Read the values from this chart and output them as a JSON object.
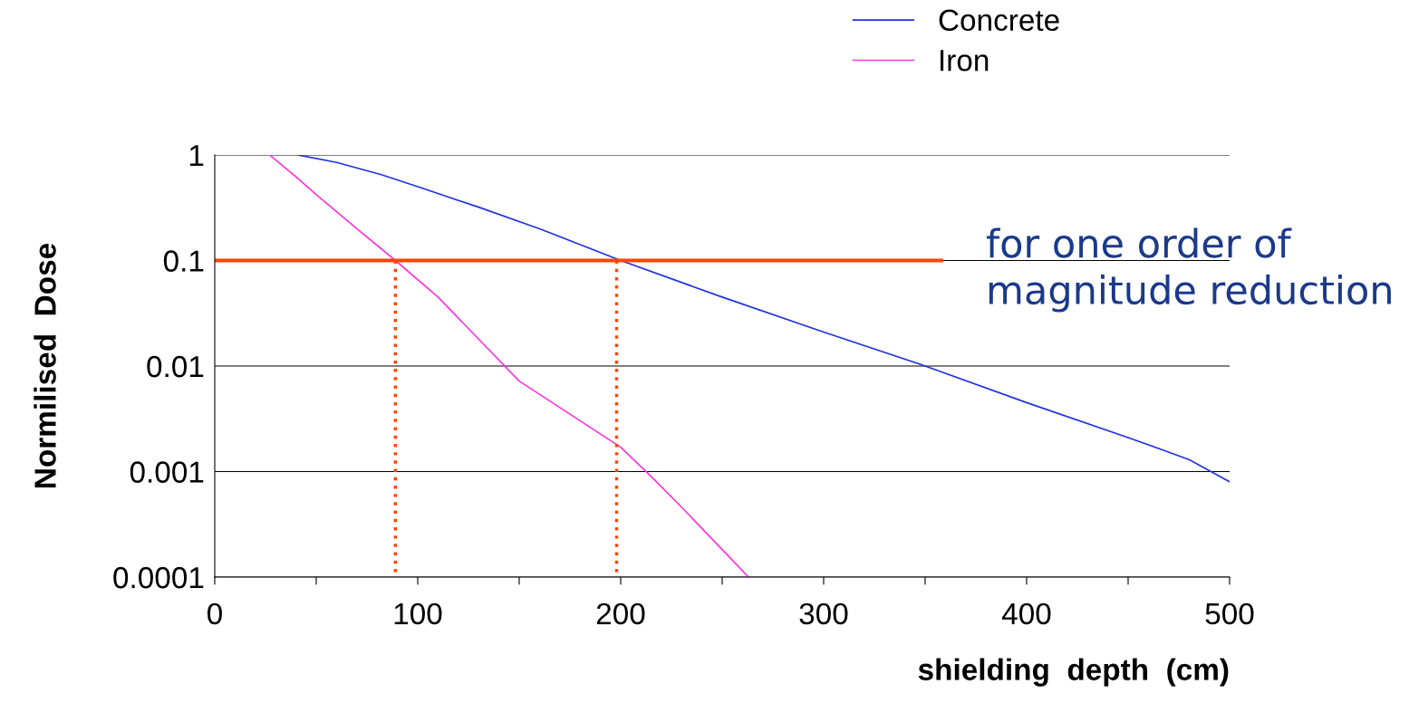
{
  "chart_data": {
    "type": "line",
    "xlabel": "shielding  depth  (cm)",
    "ylabel": "Normilised  Dose",
    "log": "y",
    "xlim": [
      0,
      500
    ],
    "ylim": [
      0.0001,
      1
    ],
    "xticks": [
      0,
      {
        "value": 50,
        "label": null
      },
      100,
      {
        "value": 150,
        "label": null
      },
      200,
      {
        "value": 250,
        "label": null
      },
      300,
      {
        "value": 350,
        "label": null
      },
      400,
      {
        "value": 450,
        "label": null
      },
      500
    ],
    "yticks": [
      0.0001,
      0.001,
      0.01,
      0.1,
      1
    ],
    "grid": "y",
    "legend": "top right",
    "line_style": "solid",
    "series": [
      {
        "name": "Concrete",
        "color": "#2233dd",
        "x": [
          41,
          60,
          82,
          100,
          130,
          160,
          200,
          250,
          300,
          350,
          400,
          450,
          480,
          500
        ],
        "values": [
          1,
          0.85,
          0.65,
          0.5,
          0.32,
          0.2,
          0.1,
          0.045,
          0.021,
          0.01,
          0.0045,
          0.0021,
          0.0013,
          0.0008
        ]
      },
      {
        "name": "Iron",
        "color": "#ff33dd",
        "x": [
          27,
          40,
          50,
          70,
          89,
          110,
          130,
          150,
          175,
          200,
          215,
          230,
          245,
          263
        ],
        "values": [
          1,
          0.62,
          0.42,
          0.2,
          0.1,
          0.045,
          0.018,
          0.0072,
          0.0035,
          0.0017,
          0.0009,
          0.00046,
          0.00023,
          0.0001
        ]
      },
      {
        "color": "#ff4400",
        "line_style": "dotted",
        "x": [
          89,
          89
        ],
        "values": [
          0.1,
          0.0001
        ]
      },
      {
        "color": "#ff4400",
        "line_style": "dotted",
        "x": [
          198,
          198
        ],
        "values": [
          0.1,
          0.0001
        ]
      },
      {
        "color": "#ff4400",
        "line_style": "solid",
        "x": [
          0,
          358
        ],
        "values": [
          0.1,
          0.1
        ]
      }
    ],
    "annotations": [
      "for one order of\nmagnitude reduction"
    ]
  }
}
